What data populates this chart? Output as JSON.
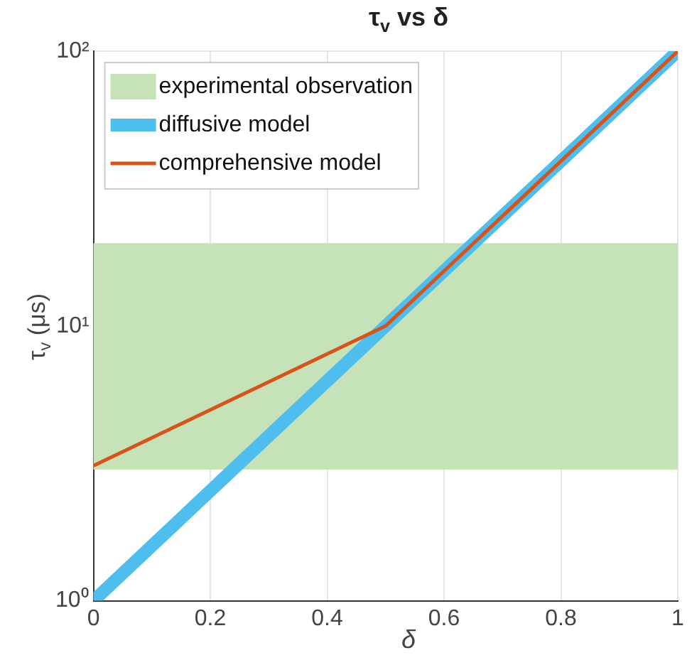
{
  "chart_data": {
    "type": "line",
    "title": "τ$_{v}$ vs δ",
    "xlabel": "δ",
    "ylabel": "τ$_{v}$ (μs)",
    "xlim": [
      0,
      1
    ],
    "xticks": [
      0,
      0.2,
      0.4,
      0.6,
      0.8,
      1
    ],
    "ylim": [
      1,
      100
    ],
    "yticks": [
      {
        "value": 1,
        "label": "10⁰"
      },
      {
        "value": 10,
        "label": "10¹"
      },
      {
        "value": 100,
        "label": "10²"
      }
    ],
    "log": "y",
    "grid": true,
    "legend": "top left",
    "bands": [
      {
        "axis": "y",
        "from": 3,
        "to": 20,
        "label": "experimental observation",
        "color": "#c6e2b8"
      }
    ],
    "series": [
      {
        "name": "diffusive model",
        "color": "#4dbeee",
        "x": [
          0,
          0.5,
          1
        ],
        "values": [
          1,
          10,
          100
        ]
      },
      {
        "name": "comprehensive model",
        "color": "#d95319",
        "x": [
          0,
          0.5,
          1
        ],
        "values": [
          3.1,
          10,
          100
        ]
      }
    ]
  }
}
